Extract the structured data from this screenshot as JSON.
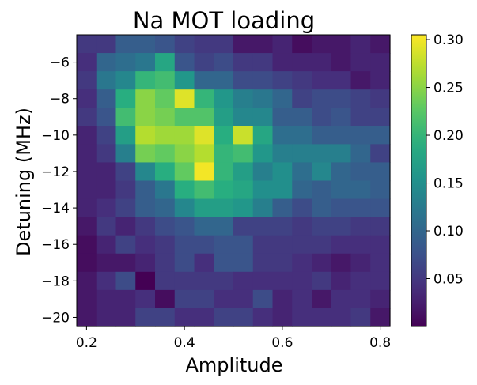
{
  "chart_data": {
    "type": "heatmap",
    "title": "Na MOT loading",
    "xlabel": "Amplitude",
    "ylabel": "Detuning (MHz)",
    "xlim": [
      0.18,
      0.82
    ],
    "ylim": [
      -20.5,
      -4.5
    ],
    "x_ticks": [
      0.2,
      0.4,
      0.6,
      0.8
    ],
    "x_tick_labels": [
      "0.2",
      "0.4",
      "0.6",
      "0.8"
    ],
    "y_ticks": [
      -6,
      -8,
      -10,
      -12,
      -14,
      -16,
      -18,
      -20
    ],
    "y_tick_labels": [
      "−6",
      "−8",
      "−10",
      "−12",
      "−14",
      "−16",
      "−18",
      "−20"
    ],
    "colorbar": {
      "colormap": "viridis",
      "range": [
        0.0,
        0.305
      ],
      "ticks": [
        0.05,
        0.1,
        0.15,
        0.2,
        0.25,
        0.3
      ],
      "tick_labels": [
        "0.05",
        "0.10",
        "0.15",
        "0.20",
        "0.25",
        "0.30"
      ]
    },
    "x_centers": [
      0.2,
      0.24,
      0.28,
      0.32,
      0.36,
      0.4,
      0.44,
      0.48,
      0.52,
      0.56,
      0.6,
      0.64,
      0.68,
      0.72,
      0.76,
      0.8
    ],
    "y_centers": [
      -5,
      -6,
      -7,
      -8,
      -9,
      -10,
      -11,
      -12,
      -13,
      -14,
      -15,
      -16,
      -17,
      -18,
      -19,
      -20
    ],
    "values": [
      [
        0.05,
        0.05,
        0.09,
        0.09,
        0.08,
        0.06,
        0.05,
        0.05,
        0.02,
        0.02,
        0.03,
        0.01,
        0.02,
        0.02,
        0.03,
        0.02
      ],
      [
        0.04,
        0.1,
        0.11,
        0.12,
        0.18,
        0.08,
        0.06,
        0.07,
        0.05,
        0.05,
        0.03,
        0.03,
        0.03,
        0.02,
        0.03,
        0.03
      ],
      [
        0.05,
        0.12,
        0.14,
        0.2,
        0.21,
        0.16,
        0.1,
        0.1,
        0.07,
        0.07,
        0.06,
        0.05,
        0.04,
        0.04,
        0.02,
        0.03
      ],
      [
        0.04,
        0.09,
        0.19,
        0.25,
        0.23,
        0.29,
        0.2,
        0.16,
        0.13,
        0.12,
        0.1,
        0.06,
        0.07,
        0.07,
        0.06,
        0.05
      ],
      [
        0.05,
        0.08,
        0.21,
        0.25,
        0.24,
        0.22,
        0.22,
        0.17,
        0.14,
        0.14,
        0.09,
        0.09,
        0.07,
        0.08,
        0.06,
        0.06
      ],
      [
        0.03,
        0.06,
        0.17,
        0.27,
        0.26,
        0.26,
        0.29,
        0.19,
        0.28,
        0.18,
        0.11,
        0.11,
        0.09,
        0.09,
        0.09,
        0.09
      ],
      [
        0.03,
        0.05,
        0.13,
        0.24,
        0.23,
        0.25,
        0.27,
        0.2,
        0.21,
        0.16,
        0.13,
        0.13,
        0.13,
        0.13,
        0.1,
        0.06
      ],
      [
        0.03,
        0.03,
        0.06,
        0.14,
        0.19,
        0.23,
        0.3,
        0.2,
        0.17,
        0.13,
        0.15,
        0.11,
        0.14,
        0.1,
        0.09,
        0.09
      ],
      [
        0.03,
        0.03,
        0.05,
        0.09,
        0.12,
        0.19,
        0.21,
        0.19,
        0.18,
        0.15,
        0.15,
        0.1,
        0.09,
        0.1,
        0.1,
        0.09
      ],
      [
        0.03,
        0.04,
        0.06,
        0.09,
        0.1,
        0.14,
        0.17,
        0.17,
        0.16,
        0.13,
        0.09,
        0.07,
        0.09,
        0.08,
        0.08,
        0.08
      ],
      [
        0.02,
        0.05,
        0.03,
        0.05,
        0.07,
        0.08,
        0.1,
        0.1,
        0.06,
        0.06,
        0.06,
        0.05,
        0.06,
        0.06,
        0.05,
        0.05
      ],
      [
        0.01,
        0.03,
        0.06,
        0.04,
        0.05,
        0.07,
        0.07,
        0.08,
        0.08,
        0.05,
        0.05,
        0.05,
        0.05,
        0.04,
        0.04,
        0.04
      ],
      [
        0.01,
        0.02,
        0.02,
        0.03,
        0.05,
        0.07,
        0.04,
        0.08,
        0.08,
        0.05,
        0.05,
        0.04,
        0.03,
        0.02,
        0.03,
        0.04
      ],
      [
        0.02,
        0.04,
        0.07,
        0.0,
        0.05,
        0.05,
        0.05,
        0.05,
        0.04,
        0.04,
        0.04,
        0.04,
        0.05,
        0.03,
        0.04,
        0.04
      ],
      [
        0.02,
        0.03,
        0.03,
        0.04,
        0.01,
        0.06,
        0.06,
        0.04,
        0.04,
        0.07,
        0.03,
        0.04,
        0.02,
        0.04,
        0.04,
        0.03
      ],
      [
        0.02,
        0.03,
        0.03,
        0.06,
        0.06,
        0.04,
        0.04,
        0.06,
        0.06,
        0.04,
        0.03,
        0.04,
        0.04,
        0.04,
        0.05,
        0.02
      ]
    ]
  }
}
